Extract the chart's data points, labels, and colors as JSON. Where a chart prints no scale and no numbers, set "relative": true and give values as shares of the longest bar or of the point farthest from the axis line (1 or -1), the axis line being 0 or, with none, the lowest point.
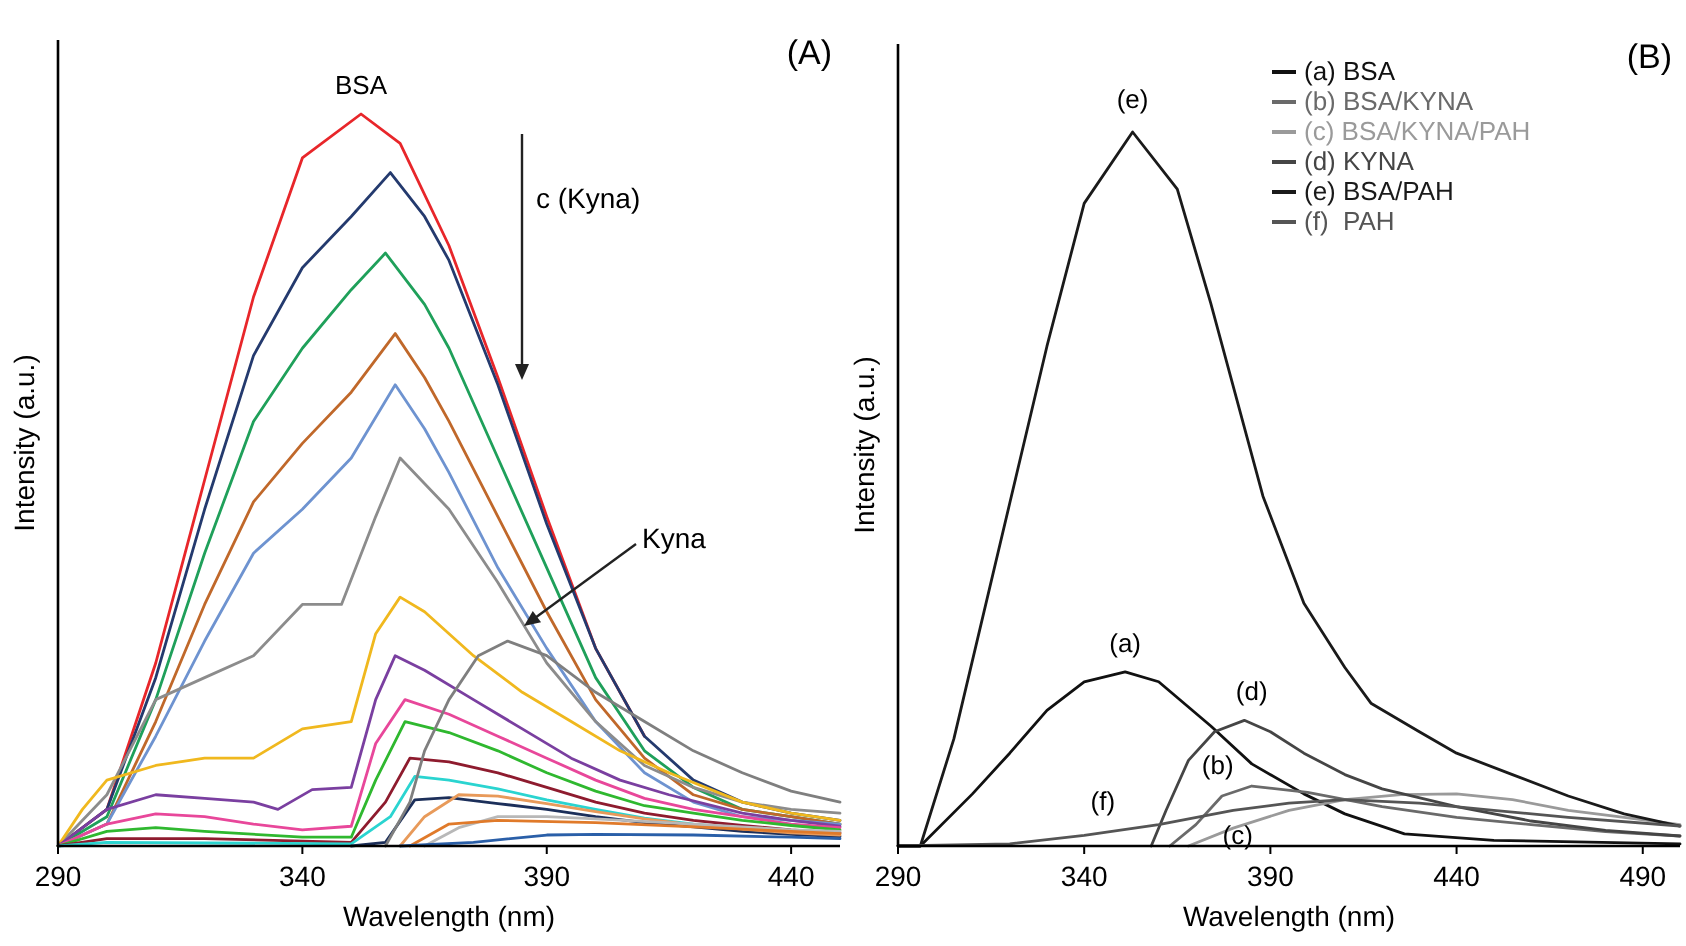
{
  "chart_data": [
    {
      "type": "line",
      "title": "(A)",
      "xlabel": "Wavelength (nm)",
      "ylabel": "Intensity (a.u.)",
      "relative": true,
      "xlim": [
        290,
        450
      ],
      "xticks": [
        290,
        340,
        390,
        440
      ],
      "grid": false,
      "legend": false,
      "marker": "none",
      "line_style": "solid",
      "annotations": [
        {
          "text": "BSA",
          "x": 352,
          "y": 1
        },
        "Kyna",
        "c (Kyna)"
      ],
      "series": [
        {
          "color": "#e8262a",
          "x": [
            290,
            300,
            310,
            320,
            330,
            340,
            352,
            360,
            370,
            380,
            390,
            400,
            410
          ],
          "values": [
            0,
            0.05,
            0.25,
            0.5,
            0.75,
            0.94,
            1,
            0.96,
            0.82,
            0.64,
            0.45,
            0.27,
            0.15
          ]
        },
        {
          "color": "#243a6e",
          "x": [
            290,
            300,
            310,
            320,
            330,
            340,
            350,
            358,
            365,
            370,
            380,
            390,
            400,
            410,
            420,
            430,
            440,
            450
          ],
          "values": [
            0,
            0.05,
            0.23,
            0.46,
            0.67,
            0.79,
            0.86,
            0.92,
            0.86,
            0.8,
            0.63,
            0.44,
            0.27,
            0.15,
            0.09,
            0.06,
            0.045,
            0.035
          ]
        },
        {
          "color": "#1fa05a",
          "x": [
            290,
            300,
            310,
            320,
            330,
            340,
            350,
            357,
            365,
            370,
            380,
            390,
            400,
            410,
            420,
            430,
            440,
            450
          ],
          "values": [
            0,
            0.04,
            0.2,
            0.4,
            0.58,
            0.68,
            0.76,
            0.81,
            0.74,
            0.68,
            0.53,
            0.38,
            0.23,
            0.13,
            0.08,
            0.05,
            0.04,
            0.03
          ]
        },
        {
          "color": "#c0682a",
          "x": [
            290,
            300,
            310,
            320,
            330,
            340,
            350,
            359,
            365,
            370,
            380,
            390,
            400,
            410,
            420,
            430,
            440,
            450
          ],
          "values": [
            0,
            0.03,
            0.17,
            0.33,
            0.47,
            0.55,
            0.62,
            0.7,
            0.64,
            0.58,
            0.45,
            0.32,
            0.2,
            0.12,
            0.07,
            0.05,
            0.04,
            0.03
          ]
        },
        {
          "color": "#6e93d0",
          "x": [
            290,
            300,
            310,
            320,
            330,
            340,
            350,
            359,
            365,
            370,
            380,
            390,
            400,
            410,
            420,
            430,
            440,
            450
          ],
          "values": [
            0,
            0.03,
            0.15,
            0.28,
            0.4,
            0.46,
            0.53,
            0.63,
            0.57,
            0.51,
            0.38,
            0.27,
            0.17,
            0.1,
            0.06,
            0.04,
            0.035,
            0.03
          ]
        },
        {
          "color": "#8c8c8c",
          "x": [
            290,
            300,
            310,
            320,
            330,
            340,
            348,
            355,
            360,
            370,
            380,
            390,
            400,
            410,
            420,
            430,
            440,
            450
          ],
          "values": [
            0,
            0.07,
            0.2,
            0.23,
            0.26,
            0.33,
            0.33,
            0.45,
            0.53,
            0.46,
            0.36,
            0.25,
            0.17,
            0.11,
            0.08,
            0.06,
            0.05,
            0.045
          ]
        },
        {
          "color": "#f0b81e",
          "x": [
            290,
            295,
            300,
            310,
            320,
            330,
            340,
            350,
            355,
            360,
            365,
            375,
            385,
            395,
            405,
            415,
            430,
            440,
            450
          ],
          "values": [
            0,
            0.05,
            0.09,
            0.11,
            0.12,
            0.12,
            0.16,
            0.17,
            0.29,
            0.34,
            0.32,
            0.26,
            0.21,
            0.17,
            0.13,
            0.1,
            0.06,
            0.045,
            0.035
          ]
        },
        {
          "color": "#7a3fa0",
          "x": [
            290,
            300,
            310,
            320,
            330,
            335,
            342,
            350,
            355,
            359,
            365,
            375,
            385,
            395,
            405,
            415,
            430,
            440,
            450
          ],
          "values": [
            0,
            0.05,
            0.07,
            0.065,
            0.06,
            0.05,
            0.077,
            0.08,
            0.2,
            0.26,
            0.24,
            0.2,
            0.16,
            0.12,
            0.09,
            0.07,
            0.045,
            0.035,
            0.027
          ]
        },
        {
          "color": "#e8479a",
          "x": [
            290,
            300,
            310,
            320,
            330,
            340,
            350,
            355,
            361,
            370,
            380,
            390,
            400,
            410,
            420,
            430,
            440,
            450
          ],
          "values": [
            0,
            0.03,
            0.044,
            0.04,
            0.03,
            0.022,
            0.027,
            0.14,
            0.2,
            0.18,
            0.15,
            0.12,
            0.09,
            0.065,
            0.05,
            0.04,
            0.03,
            0.025
          ]
        },
        {
          "color": "#2fb82f",
          "x": [
            290,
            300,
            310,
            320,
            340,
            350,
            355,
            361,
            370,
            380,
            390,
            400,
            410,
            420,
            430,
            440,
            450
          ],
          "values": [
            0,
            0.02,
            0.025,
            0.02,
            0.012,
            0.012,
            0.09,
            0.17,
            0.155,
            0.13,
            0.1,
            0.075,
            0.055,
            0.045,
            0.035,
            0.028,
            0.022
          ]
        },
        {
          "color": "#8e1b2e",
          "x": [
            290,
            300,
            320,
            350,
            357,
            362,
            370,
            380,
            390,
            400,
            410,
            420,
            430,
            440,
            450
          ],
          "values": [
            0,
            0.01,
            0.01,
            0.005,
            0.06,
            0.12,
            0.115,
            0.1,
            0.08,
            0.06,
            0.045,
            0.035,
            0.028,
            0.022,
            0.018
          ]
        },
        {
          "color": "#2ad4d0",
          "x": [
            290,
            300,
            350,
            358,
            363,
            370,
            380,
            390,
            400,
            410,
            420,
            430
          ],
          "values": [
            0,
            0.005,
            0.003,
            0.04,
            0.095,
            0.09,
            0.078,
            0.063,
            0.05,
            0.038,
            0.03,
            0.024
          ]
        },
        {
          "color": "#1c2f5a",
          "x": [
            350,
            357,
            363,
            370,
            380,
            390,
            400,
            410,
            420,
            430,
            440,
            450
          ],
          "values": [
            0,
            0.005,
            0.063,
            0.066,
            0.058,
            0.05,
            0.04,
            0.032,
            0.026,
            0.02,
            0.016,
            0.013
          ]
        },
        {
          "color": "#e89a5a",
          "x": [
            360,
            365,
            372,
            380,
            390,
            400,
            410,
            420,
            430,
            440,
            450
          ],
          "values": [
            0,
            0.04,
            0.07,
            0.068,
            0.058,
            0.047,
            0.037,
            0.029,
            0.023,
            0.018,
            0.015
          ]
        },
        {
          "color": "#b8b8b8",
          "x": [
            365,
            372,
            380,
            390,
            400,
            420,
            440,
            450
          ],
          "values": [
            0,
            0.025,
            0.04,
            0.04,
            0.037,
            0.03,
            0.022,
            0.02
          ]
        },
        {
          "color": "#e07a2a",
          "x": [
            362,
            370,
            380,
            400,
            420,
            440,
            450
          ],
          "values": [
            0,
            0.03,
            0.035,
            0.032,
            0.026,
            0.02,
            0.017
          ]
        },
        {
          "color": "#2a5fa8",
          "x": [
            360,
            375,
            390,
            400,
            420,
            440,
            450
          ],
          "values": [
            0,
            0.005,
            0.015,
            0.016,
            0.015,
            0.012,
            0.01
          ]
        },
        {
          "color": "#7f7f7f",
          "x": [
            357,
            362,
            365,
            370,
            376,
            382,
            390,
            400,
            410,
            420,
            430,
            440,
            450
          ],
          "values": [
            0,
            0.06,
            0.13,
            0.2,
            0.26,
            0.28,
            0.26,
            0.21,
            0.17,
            0.13,
            0.1,
            0.075,
            0.06
          ]
        }
      ]
    },
    {
      "type": "line",
      "title": "(B)",
      "xlabel": "Wavelength (nm)",
      "ylabel": "Intensity (a.u.)",
      "relative": true,
      "xlim": [
        290,
        500
      ],
      "xticks": [
        290,
        340,
        390,
        440,
        490
      ],
      "grid": false,
      "legend": "top right",
      "marker": "none",
      "line_style": "solid",
      "annotations": [
        {
          "text": "(e)",
          "x": 353,
          "y": 1
        },
        {
          "text": "(a)",
          "x": 351,
          "y": 0.244
        },
        {
          "text": "(d)",
          "x": 385,
          "y": 0.176
        },
        {
          "text": "(b)",
          "x": 385,
          "y": 0.084
        },
        {
          "text": "(c)",
          "x": 378,
          "y": 0.02
        },
        {
          "text": "(f)",
          "x": 345,
          "y": 0.022
        }
      ],
      "series": [
        {
          "name": "(a) BSA",
          "color": "#111111",
          "x": [
            290,
            296,
            310,
            320,
            330,
            340,
            351,
            360,
            374,
            385,
            399,
            410,
            426,
            450,
            500
          ],
          "values": [
            0,
            0,
            0.073,
            0.13,
            0.19,
            0.23,
            0.244,
            0.23,
            0.168,
            0.115,
            0.073,
            0.045,
            0.017,
            0.008,
            0.003
          ]
        },
        {
          "name": "(b) BSA/KYNA",
          "color": "#6a6a6a",
          "x": [
            363,
            370,
            377,
            385,
            400,
            420,
            440,
            460,
            480,
            500
          ],
          "values": [
            0,
            0.03,
            0.07,
            0.084,
            0.075,
            0.055,
            0.04,
            0.03,
            0.02,
            0.014
          ]
        },
        {
          "name": "(c) BSA/KYNA/PAH",
          "color": "#9a9a9a",
          "x": [
            368,
            380,
            395,
            410,
            425,
            440,
            455,
            470,
            485,
            500
          ],
          "values": [
            0,
            0.025,
            0.05,
            0.065,
            0.072,
            0.073,
            0.065,
            0.05,
            0.04,
            0.03
          ]
        },
        {
          "name": "(d) KYNA",
          "color": "#454545",
          "x": [
            358,
            362,
            368,
            375,
            383,
            390,
            399,
            410,
            420,
            440,
            460,
            480,
            500
          ],
          "values": [
            0,
            0.05,
            0.12,
            0.16,
            0.176,
            0.16,
            0.13,
            0.1,
            0.08,
            0.055,
            0.035,
            0.022,
            0.014
          ]
        },
        {
          "name": "(e) BSA/PAH",
          "color": "#1a1a1a",
          "x": [
            290,
            296,
            305,
            320,
            330,
            340,
            353,
            365,
            374,
            388,
            399,
            410,
            417,
            430,
            440,
            455,
            470,
            485,
            500
          ],
          "values": [
            0,
            0,
            0.15,
            0.48,
            0.7,
            0.9,
            1,
            0.92,
            0.76,
            0.49,
            0.34,
            0.25,
            0.2,
            0.16,
            0.13,
            0.1,
            0.07,
            0.045,
            0.028
          ]
        },
        {
          "name": "(f)  PAH",
          "color": "#555555",
          "x": [
            290,
            320,
            340,
            360,
            380,
            395,
            410,
            430,
            450,
            470,
            500
          ],
          "values": [
            0,
            0.003,
            0.015,
            0.03,
            0.05,
            0.06,
            0.065,
            0.06,
            0.05,
            0.04,
            0.028
          ]
        }
      ]
    }
  ]
}
